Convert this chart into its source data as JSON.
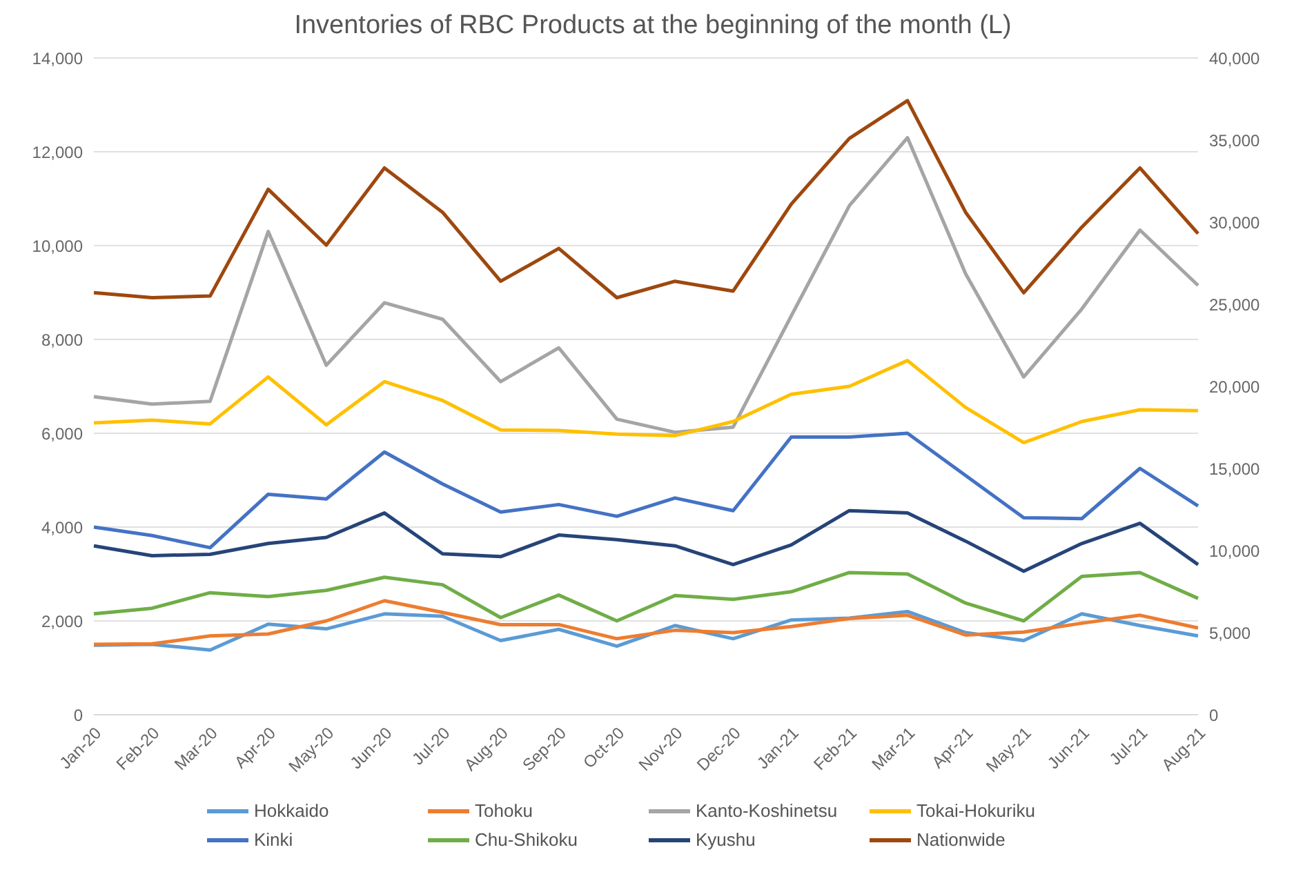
{
  "chart_data": {
    "type": "line",
    "title": "Inventories of RBC Products at the beginning of the month (L)",
    "categories": [
      "Jan-20",
      "Feb-20",
      "Mar-20",
      "Apr-20",
      "May-20",
      "Jun-20",
      "Jul-20",
      "Aug-20",
      "Sep-20",
      "Oct-20",
      "Nov-20",
      "Dec-20",
      "Jan-21",
      "Feb-21",
      "Mar-21",
      "Apr-21",
      "May-21",
      "Jun-21",
      "Jul-21",
      "Aug-21"
    ],
    "series": [
      {
        "name": "Hokkaido",
        "color": "#5b9bd5",
        "values": [
          1480,
          1500,
          1380,
          1930,
          1830,
          2150,
          2100,
          1580,
          1820,
          1460,
          1900,
          1620,
          2020,
          2060,
          2200,
          1750,
          1580,
          2150,
          1900,
          1680
        ]
      },
      {
        "name": "Tohoku",
        "color": "#ed7d31",
        "values": [
          1500,
          1510,
          1680,
          1720,
          2000,
          2430,
          2180,
          1920,
          1920,
          1620,
          1800,
          1750,
          1880,
          2050,
          2120,
          1700,
          1760,
          1950,
          2120,
          1850
        ]
      },
      {
        "name": "Kanto-Koshinetsu",
        "color": "#a5a5a5",
        "values": [
          6780,
          6620,
          6680,
          10300,
          7450,
          8780,
          8430,
          7100,
          7820,
          6300,
          6020,
          6130,
          8500,
          10850,
          12300,
          9400,
          7200,
          8650,
          10330,
          9150
        ]
      },
      {
        "name": "Tokai-Hokuriku",
        "color": "#ffc000",
        "values": [
          6220,
          6280,
          6200,
          7200,
          6180,
          7100,
          6700,
          6070,
          6060,
          5980,
          5950,
          6250,
          6830,
          7000,
          7550,
          6550,
          5800,
          6250,
          6500,
          6480
        ]
      },
      {
        "name": "Kinki",
        "color": "#4472c4",
        "values": [
          4000,
          3820,
          3560,
          4700,
          4600,
          5600,
          4920,
          4320,
          4480,
          4230,
          4620,
          4350,
          5920,
          5920,
          6000,
          5100,
          4200,
          4180,
          5250,
          4450
        ]
      },
      {
        "name": "Chu-Shikoku",
        "color": "#70ad47",
        "values": [
          2150,
          2270,
          2600,
          2520,
          2650,
          2930,
          2770,
          2070,
          2550,
          2000,
          2540,
          2460,
          2620,
          3030,
          3000,
          2380,
          2000,
          2950,
          3030,
          2480
        ]
      },
      {
        "name": "Kyushu",
        "color": "#264478",
        "values": [
          3600,
          3390,
          3420,
          3650,
          3780,
          4300,
          3430,
          3370,
          3830,
          3730,
          3600,
          3200,
          3620,
          4350,
          4300,
          3700,
          3060,
          3650,
          4080,
          3200
        ]
      },
      {
        "name": "Nationwide",
        "color": "#9e480e",
        "axis": "y2",
        "values": [
          25700,
          25400,
          25500,
          32000,
          28600,
          33300,
          30600,
          26400,
          28400,
          25400,
          26400,
          25800,
          31100,
          35100,
          37400,
          30600,
          25700,
          29700,
          33300,
          29300
        ]
      }
    ],
    "ylim": [
      0,
      14000
    ],
    "yticks": [
      {
        "value": 0,
        "label": "0"
      },
      {
        "value": 2000,
        "label": "2,000"
      },
      {
        "value": 4000,
        "label": "4,000"
      },
      {
        "value": 6000,
        "label": "6,000"
      },
      {
        "value": 8000,
        "label": "8,000"
      },
      {
        "value": 10000,
        "label": "10,000"
      },
      {
        "value": 12000,
        "label": "12,000"
      },
      {
        "value": 14000,
        "label": "14,000"
      }
    ],
    "y2lim": [
      0,
      40000
    ],
    "y2ticks": [
      {
        "value": 0,
        "label": "0"
      },
      {
        "value": 5000,
        "label": "5,000"
      },
      {
        "value": 10000,
        "label": "10,000"
      },
      {
        "value": 15000,
        "label": "15,000"
      },
      {
        "value": 20000,
        "label": "20,000"
      },
      {
        "value": 25000,
        "label": "25,000"
      },
      {
        "value": 30000,
        "label": "30,000"
      },
      {
        "value": 35000,
        "label": "35,000"
      },
      {
        "value": 40000,
        "label": "40,000"
      }
    ],
    "grid": "y",
    "legend": "bottom",
    "marker": "none",
    "line_style": "solid"
  }
}
